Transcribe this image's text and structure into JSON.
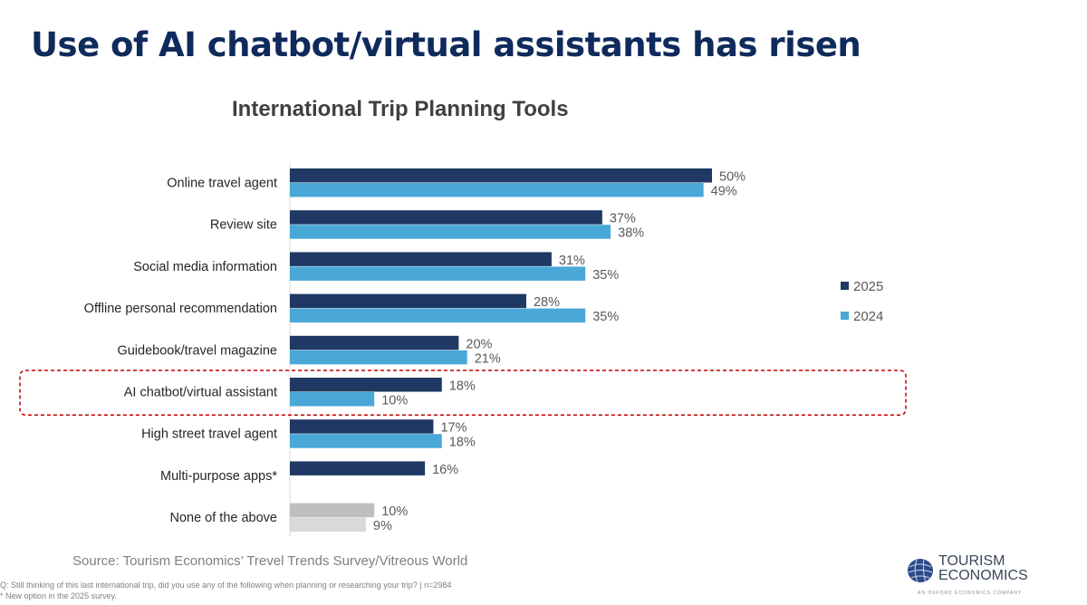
{
  "title": "Use of AI chatbot/virtual assistants has risen",
  "chart_data": {
    "type": "bar",
    "orientation": "horizontal",
    "title": "International Trip Planning Tools",
    "categories": [
      "Online travel agent",
      "Review site",
      "Social media information",
      "Offline personal recommendation",
      "Guidebook/travel magazine",
      "AI chatbot/virtual assistant",
      "High street travel agent",
      "Multi-purpose apps*",
      "None of the above"
    ],
    "series": [
      {
        "name": "2025",
        "color": "#1f3864",
        "values": [
          50,
          37,
          31,
          28,
          20,
          18,
          17,
          16,
          10
        ]
      },
      {
        "name": "2024",
        "color": "#4aa8d8",
        "values": [
          49,
          38,
          35,
          35,
          21,
          10,
          18,
          null,
          9
        ]
      }
    ],
    "none_colors": {
      "2025": "#bfbfbf",
      "2024": "#d9d9d9"
    },
    "value_suffix": "%",
    "legend_position": "right",
    "highlighted_category": "AI chatbot/virtual assistant",
    "highlight_color": "#c00000",
    "grid": false
  },
  "source": "Source: Tourism Economics’ Trevel Trends Survey/Vitreous World",
  "footnote_q": "Q: Still thinking of this last international trip, did you use any of the following when planning or researching your trip? | n=2984",
  "footnote_new": "* New option in the 2025 survey.",
  "logo": {
    "line1": "TOURISM",
    "line2": "ECONOMICS",
    "tagline": "AN OXFORD ECONOMICS COMPANY"
  }
}
